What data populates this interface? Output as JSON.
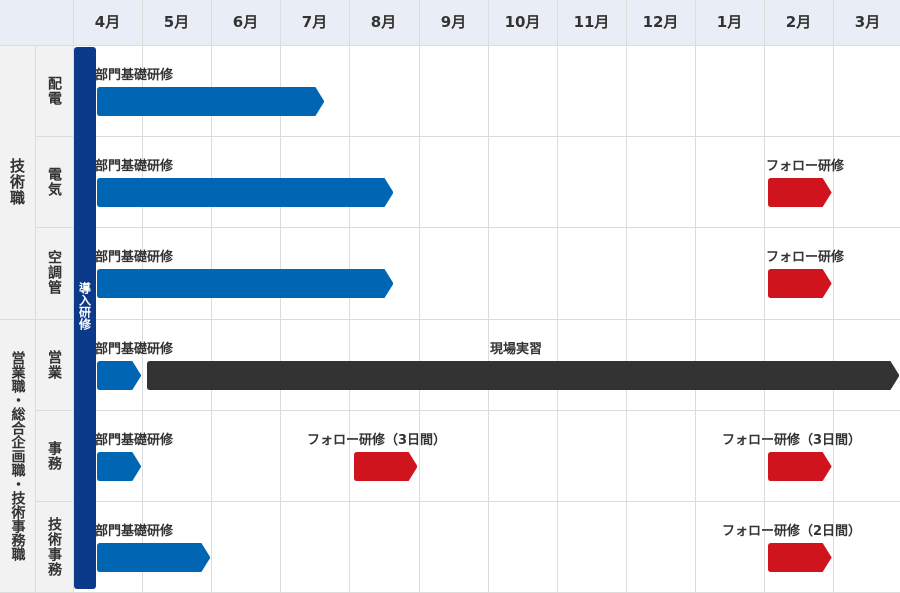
{
  "months": [
    "4月",
    "5月",
    "6月",
    "7月",
    "8月",
    "9月",
    "10月",
    "11月",
    "12月",
    "1月",
    "2月",
    "3月"
  ],
  "categories": [
    {
      "key": "tech",
      "label": "技術職"
    },
    {
      "key": "sales",
      "label": "営業職・総合企画職・技術事務職"
    }
  ],
  "intro_training": {
    "label": "導入研修",
    "start_month": 0,
    "end_month": 0
  },
  "colors": {
    "basic": "#0066b3",
    "follow": "#d0141e",
    "onsite": "#333333",
    "intro": "#0c3a8a",
    "header": "#e9eef6",
    "side": "#f2f2f2"
  },
  "rows": [
    {
      "label": "配電",
      "category": "tech",
      "bars": [
        {
          "label": "部門基礎研修",
          "start": 0.33,
          "end": 3.65,
          "color": "basic",
          "label_at": 0.33
        }
      ]
    },
    {
      "label": "電気",
      "category": "tech",
      "bars": [
        {
          "label": "部門基礎研修",
          "start": 0.33,
          "end": 4.65,
          "color": "basic",
          "label_at": 0.33
        },
        {
          "label": "フォロー研修",
          "start": 10.05,
          "end": 11.0,
          "color": "follow",
          "label_at": 10.05
        }
      ]
    },
    {
      "label": "空調管",
      "category": "tech",
      "bars": [
        {
          "label": "部門基礎研修",
          "start": 0.33,
          "end": 4.65,
          "color": "basic",
          "label_at": 0.33
        },
        {
          "label": "フォロー研修",
          "start": 10.05,
          "end": 11.0,
          "color": "follow",
          "label_at": 10.05
        }
      ]
    },
    {
      "label": "営業",
      "category": "sales",
      "bars": [
        {
          "label": "部門基礎研修",
          "start": 0.33,
          "end": 1.0,
          "color": "basic",
          "label_at": 0.33
        },
        {
          "label": "現場実習",
          "start": 1.05,
          "end": 12.0,
          "color": "onsite",
          "label_at": 6.05
        }
      ]
    },
    {
      "label": "事務",
      "category": "sales",
      "bars": [
        {
          "label": "部門基礎研修",
          "start": 0.33,
          "end": 1.0,
          "color": "basic",
          "label_at": 0.33
        },
        {
          "label": "フォロー研修（3日間）",
          "start": 4.05,
          "end": 5.0,
          "color": "follow",
          "label_at": 3.4
        },
        {
          "label": "フォロー研修（3日間）",
          "start": 10.05,
          "end": 11.0,
          "color": "follow",
          "label_at": 9.4
        }
      ]
    },
    {
      "label": "技術事務",
      "category": "sales",
      "bars": [
        {
          "label": "部門基礎研修",
          "start": 0.33,
          "end": 2.0,
          "color": "basic",
          "label_at": 0.33
        },
        {
          "label": "フォロー研修（2日間）",
          "start": 10.05,
          "end": 11.0,
          "color": "follow",
          "label_at": 9.4
        }
      ]
    }
  ]
}
